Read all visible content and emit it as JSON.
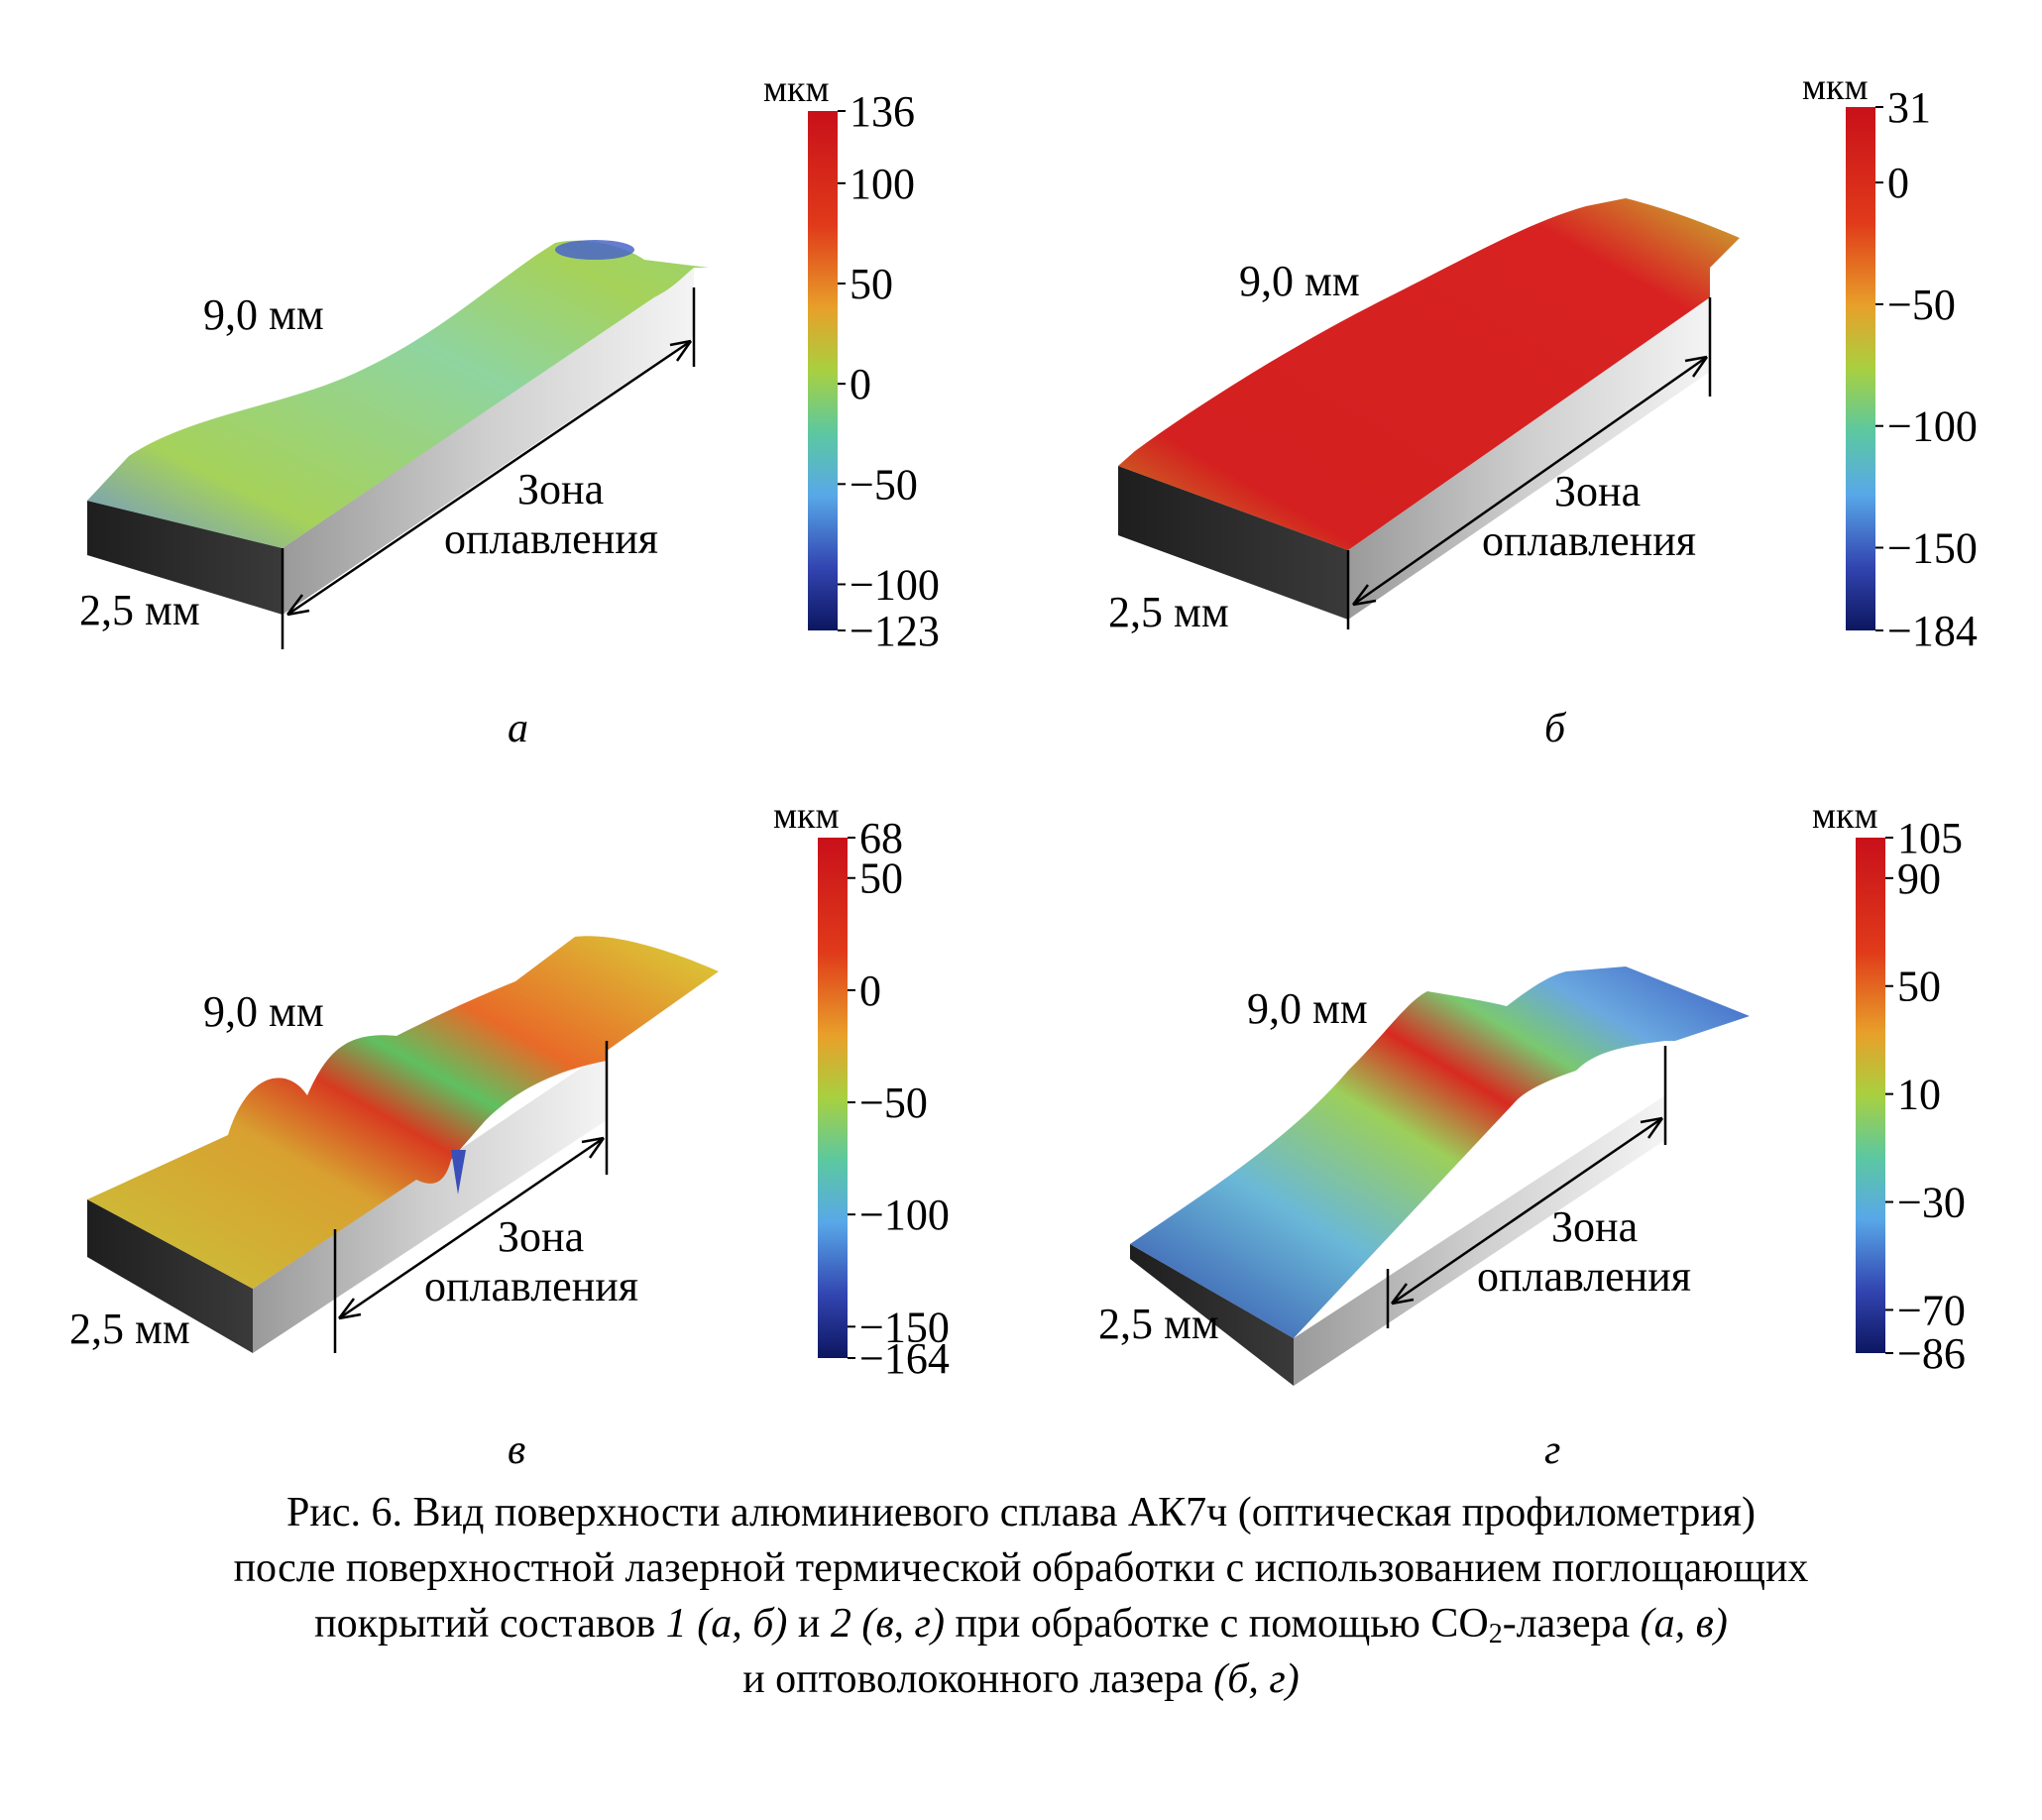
{
  "panels": [
    {
      "letter": "а",
      "width_label": "9,0 мм",
      "depth_label": "2,5 мм",
      "zone_label_1": "Зона",
      "zone_label_2": "оплавления",
      "colorbar": {
        "unit": "мкм",
        "max": 136,
        "min": -123,
        "ticks": [
          136,
          100,
          50,
          0,
          -50,
          -100,
          -123
        ],
        "tick_labels": [
          "136",
          "100",
          "50",
          "0",
          "−50",
          "−100",
          "−123"
        ]
      },
      "surface_colors": {
        "near": "#6a8fd8",
        "mid": "#a6d25a",
        "far": "#9bd36c",
        "accent": "#4a66c8"
      }
    },
    {
      "letter": "б",
      "width_label": "9,0 мм",
      "depth_label": "2,5 мм",
      "zone_label_1": "Зона",
      "zone_label_2": "оплавления",
      "colorbar": {
        "unit": "мкм",
        "max": 31,
        "min": -184,
        "ticks": [
          31,
          0,
          -50,
          -100,
          -150,
          -184
        ],
        "tick_labels": [
          "31",
          "0",
          "−50",
          "−100",
          "−150",
          "−184"
        ]
      },
      "surface_colors": {
        "near": "#c49a24",
        "mid": "#d42020",
        "far": "#c8b530",
        "accent": "#b81818"
      }
    },
    {
      "letter": "в",
      "width_label": "9,0 мм",
      "depth_label": "2,5 мм",
      "zone_label_1": "Зона",
      "zone_label_2": "оплавления",
      "colorbar": {
        "unit": "мкм",
        "max": 68,
        "min": -164,
        "ticks": [
          68,
          50,
          0,
          -50,
          -100,
          -150,
          -164
        ],
        "tick_labels": [
          "68",
          "50",
          "0",
          "−50",
          "−100",
          "−150",
          "−164"
        ]
      },
      "surface_colors": {
        "near": "#c9c43a",
        "mid": "#d83a20",
        "far": "#d9d238",
        "accent": "#5fc060"
      }
    },
    {
      "letter": "г",
      "width_label": "9,0 мм",
      "depth_label": "2,5 мм",
      "zone_label_1": "Зона",
      "zone_label_2": "оплавления",
      "colorbar": {
        "unit": "мкм",
        "max": 105,
        "min": -86,
        "ticks": [
          105,
          90,
          50,
          10,
          -30,
          -70,
          -86
        ],
        "tick_labels": [
          "105",
          "90",
          "50",
          "10",
          "−30",
          "−70",
          "−86"
        ]
      },
      "surface_colors": {
        "near": "#2f46a8",
        "mid": "#9ccf5a",
        "far": "#3a5cc0",
        "accent": "#d82a20"
      }
    }
  ],
  "caption": {
    "line1": "Рис. 6. Вид поверхности алюминиевого сплава АК7ч (оптическая профилометрия)",
    "line2": "после поверхностной лазерной термической обработки с использованием поглощающих",
    "line3_a": "покрытий составов ",
    "line3_b": "1 (а, б)",
    "line3_c": " и ",
    "line3_d": "2 (в, г)",
    "line3_e": " при обработке с помощью СО",
    "line3_sub": "2",
    "line3_f": "-лазера ",
    "line3_g": "(а, в)",
    "line4_a": "и оптоволоконного лазера ",
    "line4_b": "(б, г)"
  }
}
